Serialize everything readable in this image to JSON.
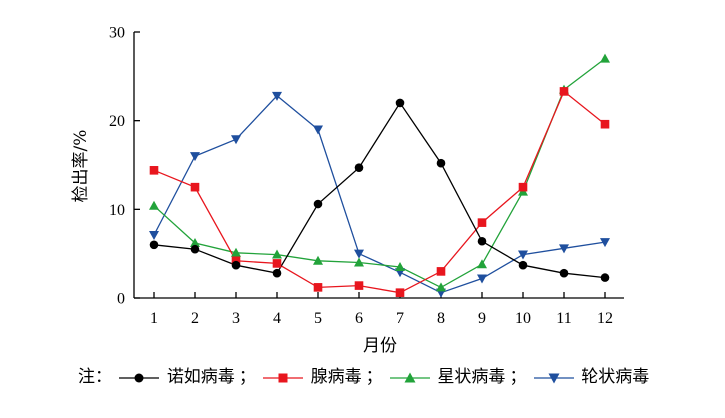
{
  "chart_data": {
    "type": "line",
    "title": "",
    "xlabel": "月份",
    "ylabel": "检出率/%",
    "x": [
      1,
      2,
      3,
      4,
      5,
      6,
      7,
      8,
      9,
      10,
      11,
      12
    ],
    "ylim": [
      0,
      30
    ],
    "yticks": [
      0,
      10,
      20,
      30
    ],
    "grid": false,
    "series": [
      {
        "name": "诺如病毒",
        "color": "#000000",
        "marker": "circle",
        "values": [
          6.0,
          5.5,
          3.7,
          2.8,
          10.6,
          14.7,
          22.0,
          15.2,
          6.4,
          3.7,
          2.8,
          2.3
        ]
      },
      {
        "name": "腺病毒",
        "color": "#e8161e",
        "marker": "square",
        "values": [
          14.4,
          12.5,
          4.2,
          3.9,
          1.2,
          1.4,
          0.6,
          3.0,
          8.5,
          12.5,
          23.3,
          19.6
        ]
      },
      {
        "name": "星状病毒",
        "color": "#22a33a",
        "marker": "triangle-up",
        "values": [
          10.4,
          6.2,
          5.1,
          4.9,
          4.2,
          4.0,
          3.5,
          1.2,
          3.8,
          12.0,
          23.5,
          27.0
        ]
      },
      {
        "name": "轮状病毒",
        "color": "#1f4f9e",
        "marker": "triangle-down",
        "values": [
          7.1,
          16.0,
          17.9,
          22.8,
          19.0,
          5.0,
          2.9,
          0.6,
          2.2,
          4.9,
          5.6,
          6.3
        ]
      }
    ]
  },
  "legend": {
    "prefix": "注：",
    "separator": "；",
    "labels": [
      "诺如病毒",
      "腺病毒",
      "星状病毒",
      "轮状病毒"
    ]
  }
}
